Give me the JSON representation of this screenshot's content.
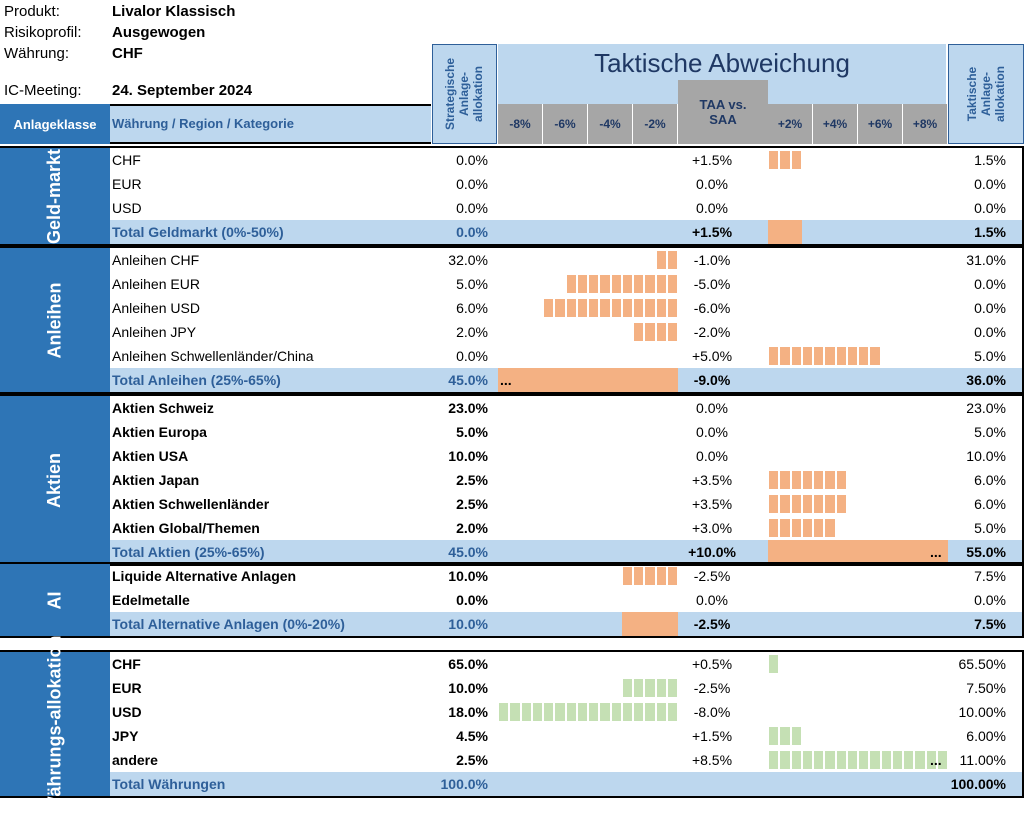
{
  "meta": {
    "produkt_label": "Produkt:",
    "produkt": "Livalor Klassisch",
    "risiko_label": "Risikoprofil:",
    "risiko": "Ausgewogen",
    "waehrung_label": "Währung:",
    "waehrung": "CHF",
    "meeting_label": "IC-Meeting:",
    "meeting": "24. September 2024"
  },
  "header": {
    "col_class": "Anlageklasse",
    "col_region": "Währung / Region / Kategorie",
    "strategic": "Strategische Anlage-allokation",
    "tactical_title": "Taktische Abweichung",
    "taa_vs_saa": "TAA vs. SAA",
    "tactical_alloc": "Taktische Anlage-allokation",
    "axis_neg": [
      "-8%",
      "-6%",
      "-4%",
      "-2%"
    ],
    "axis_pos": [
      "+2%",
      "+4%",
      "+6%",
      "+8%"
    ]
  },
  "colors": {
    "accent_blue": "#2e75b6",
    "band_blue": "#bdd7ee",
    "bar_orange": "#f4b183",
    "bar_green": "#c5e0b4"
  },
  "sections": [
    {
      "name": "Geld-markt",
      "rows": [
        {
          "label": "CHF",
          "saa": "0.0%",
          "dev": "+1.5%",
          "taa": "1.5%",
          "bar": 1.5,
          "bold": false,
          "total": false
        },
        {
          "label": "EUR",
          "saa": "0.0%",
          "dev": "0.0%",
          "taa": "0.0%",
          "bar": 0,
          "bold": false,
          "total": false
        },
        {
          "label": "USD",
          "saa": "0.0%",
          "dev": "0.0%",
          "taa": "0.0%",
          "bar": 0,
          "bold": false,
          "total": false
        },
        {
          "label": "Total Geldmarkt (0%-50%)",
          "saa": "0.0%",
          "dev": "+1.5%",
          "taa": "1.5%",
          "bar": 1.5,
          "bold": true,
          "total": true
        }
      ]
    },
    {
      "name": "Anleihen",
      "rows": [
        {
          "label": "Anleihen CHF",
          "saa": "32.0%",
          "dev": "-1.0%",
          "taa": "31.0%",
          "bar": -1,
          "bold": false,
          "total": false
        },
        {
          "label": "Anleihen EUR",
          "saa": "5.0%",
          "dev": "-5.0%",
          "taa": "0.0%",
          "bar": -5,
          "bold": false,
          "total": false
        },
        {
          "label": "Anleihen USD",
          "saa": "6.0%",
          "dev": "-6.0%",
          "taa": "0.0%",
          "bar": -6,
          "bold": false,
          "total": false
        },
        {
          "label": "Anleihen JPY",
          "saa": "2.0%",
          "dev": "-2.0%",
          "taa": "0.0%",
          "bar": -2,
          "bold": false,
          "total": false
        },
        {
          "label": "Anleihen Schwellenländer/China",
          "saa": "0.0%",
          "dev": "+5.0%",
          "taa": "5.0%",
          "bar": 5,
          "bold": false,
          "total": false
        },
        {
          "label": "Total Anleihen (25%-65%)",
          "saa": "45.0%",
          "dev": "-9.0%",
          "taa": "36.0%",
          "bar": -9,
          "bold": true,
          "total": true,
          "ellipsis": "..."
        }
      ]
    },
    {
      "name": "Aktien",
      "rows": [
        {
          "label": "Aktien Schweiz",
          "saa": "23.0%",
          "dev": "0.0%",
          "taa": "23.0%",
          "bar": 0,
          "bold": true,
          "total": false
        },
        {
          "label": "Aktien Europa",
          "saa": "5.0%",
          "dev": "0.0%",
          "taa": "5.0%",
          "bar": 0,
          "bold": true,
          "total": false
        },
        {
          "label": "Aktien USA",
          "saa": "10.0%",
          "dev": "0.0%",
          "taa": "10.0%",
          "bar": 0,
          "bold": true,
          "total": false
        },
        {
          "label": "Aktien Japan",
          "saa": "2.5%",
          "dev": "+3.5%",
          "taa": "6.0%",
          "bar": 3.5,
          "bold": true,
          "total": false
        },
        {
          "label": "Aktien Schwellenländer",
          "saa": "2.5%",
          "dev": "+3.5%",
          "taa": "6.0%",
          "bar": 3.5,
          "bold": true,
          "total": false
        },
        {
          "label": "Aktien Global/Themen",
          "saa": "2.0%",
          "dev": "+3.0%",
          "taa": "5.0%",
          "bar": 3,
          "bold": true,
          "total": false
        },
        {
          "label": "Total Aktien (25%-65%)",
          "saa": "45.0%",
          "dev": "+10.0%",
          "taa": "55.0%",
          "bar": 10,
          "bold": true,
          "total": true,
          "ellipsis": "..."
        }
      ]
    },
    {
      "name": "AI",
      "rows": [
        {
          "label": "Liquide Alternative Anlagen",
          "saa": "10.0%",
          "dev": "-2.5%",
          "taa": "7.5%",
          "bar": -2.5,
          "bold": true,
          "total": false
        },
        {
          "label": "Edelmetalle",
          "saa": "0.0%",
          "dev": "0.0%",
          "taa": "0.0%",
          "bar": 0,
          "bold": true,
          "total": false
        },
        {
          "label": "Total Alternative Anlagen (0%-20%)",
          "saa": "10.0%",
          "dev": "-2.5%",
          "taa": "7.5%",
          "bar": -2.5,
          "bold": true,
          "total": true
        }
      ]
    },
    {
      "name": "Währungs-allokation",
      "rows": [
        {
          "label": "CHF",
          "saa": "65.0%",
          "dev": "+0.5%",
          "taa": "65.50%",
          "bar": 0.5,
          "bold": true,
          "total": false
        },
        {
          "label": "EUR",
          "saa": "10.0%",
          "dev": "-2.5%",
          "taa": "7.50%",
          "bar": -2.5,
          "bold": true,
          "total": false
        },
        {
          "label": "USD",
          "saa": "18.0%",
          "dev": "-8.0%",
          "taa": "10.00%",
          "bar": -8,
          "bold": true,
          "total": false
        },
        {
          "label": "JPY",
          "saa": "4.5%",
          "dev": "+1.5%",
          "taa": "6.00%",
          "bar": 1.5,
          "bold": true,
          "total": false
        },
        {
          "label": "andere",
          "saa": "2.5%",
          "dev": "+8.5%",
          "taa": "11.00%",
          "bar": 8.5,
          "bold": true,
          "total": false,
          "ellipsis": "..."
        },
        {
          "label": "Total Währungen",
          "saa": "100.0%",
          "dev": "",
          "taa": "100.00%",
          "bar": 0,
          "bold": true,
          "total": true
        }
      ]
    }
  ]
}
